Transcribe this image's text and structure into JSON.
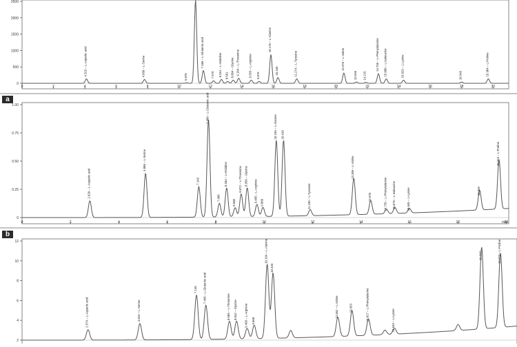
{
  "panel_tags": [
    "a",
    "b"
  ],
  "chart_data": [
    {
      "type": "line",
      "panel": "top",
      "ylim": [
        0,
        260
      ],
      "xlim": [
        0,
        31
      ],
      "yticks": [
        "2500",
        "2000",
        "1500",
        "1000",
        "500",
        "0"
      ],
      "xticks": [
        "0",
        "2",
        "4",
        "6",
        "8",
        "10",
        "12",
        "14",
        "16",
        "18",
        "20",
        "22",
        "24",
        "26",
        "28",
        "30"
      ],
      "grid": false,
      "peaks": [
        {
          "x": 4.1,
          "y": 14,
          "label": "4.315 – L-Aspartic acid"
        },
        {
          "x": 7.8,
          "y": 12,
          "label": "4.960 – L-Serine"
        },
        {
          "x": 10.5,
          "y": 2,
          "label": "5.878"
        },
        {
          "x": 11.05,
          "y": 260,
          "label": ""
        },
        {
          "x": 11.55,
          "y": 40,
          "label": "7.466 – L-Glutamic acid"
        },
        {
          "x": 12.2,
          "y": 8,
          "label": "7.970"
        },
        {
          "x": 12.7,
          "y": 12,
          "label": "8.261 – L-Histidine"
        },
        {
          "x": 13.1,
          "y": 6,
          "label": "8.561"
        },
        {
          "x": 13.45,
          "y": 10,
          "label": "8.864 – Glycine"
        },
        {
          "x": 13.8,
          "y": 16,
          "label": "9.184 – L-Threonine"
        },
        {
          "x": 14.6,
          "y": 10,
          "label": "9.553 – L-Arginine"
        },
        {
          "x": 15.1,
          "y": 6,
          "label": "9.876"
        },
        {
          "x": 15.85,
          "y": 90,
          "label": "10.176 – L-Alanine"
        },
        {
          "x": 16.3,
          "y": 18,
          "label": "10.449"
        },
        {
          "x": 17.5,
          "y": 14,
          "label": "11.274 – L-Tyrosine"
        },
        {
          "x": 20.5,
          "y": 32,
          "label": "13.376 – L-Valine"
        },
        {
          "x": 21.3,
          "y": 4,
          "label": "13.946"
        },
        {
          "x": 21.9,
          "y": 3,
          "label": "14.215"
        },
        {
          "x": 22.7,
          "y": 30,
          "label": "14.755 – L-Phenylalanine"
        },
        {
          "x": 23.2,
          "y": 14,
          "label": "15.080 – L-Isoleucine"
        },
        {
          "x": 24.3,
          "y": 10,
          "label": "15.629 – L-Lysine"
        },
        {
          "x": 28.0,
          "y": 4,
          "label": "18.549"
        },
        {
          "x": 29.7,
          "y": 14,
          "label": "19.304 – L-Proline"
        }
      ]
    },
    {
      "type": "line",
      "panel": "a",
      "ylim": [
        0,
        150
      ],
      "xlim": [
        0,
        20.1
      ],
      "yticks": [
        "1.00",
        "0.75",
        "0.50",
        "0.25",
        "0"
      ],
      "xticks": [
        "0",
        "2",
        "4",
        "6",
        "8",
        "10",
        "12",
        "14",
        "16",
        "18",
        "20"
      ],
      "x_unit_label": "min",
      "grid": false,
      "peaks": [
        {
          "x": 2.8,
          "y": 22,
          "label": "2.620 – L-Aspartic acid"
        },
        {
          "x": 5.1,
          "y": 58,
          "label": "4.886 – L-Serine"
        },
        {
          "x": 7.3,
          "y": 40,
          "label": "7.143"
        },
        {
          "x": 7.7,
          "y": 128,
          "label": "7.488 – L-Glutamic acid"
        },
        {
          "x": 8.15,
          "y": 18,
          "label": "7.986"
        },
        {
          "x": 8.45,
          "y": 38,
          "label": "8.284 – L-Histidine"
        },
        {
          "x": 8.8,
          "y": 12,
          "label": "8.580"
        },
        {
          "x": 9.05,
          "y": 30,
          "label": "8.872 – L-Threonine"
        },
        {
          "x": 9.3,
          "y": 38,
          "label": "8.956 – Glycine"
        },
        {
          "x": 9.7,
          "y": 16,
          "label": "9.485 – L-Arginine"
        },
        {
          "x": 9.95,
          "y": 12,
          "label": "9.868"
        },
        {
          "x": 10.5,
          "y": 100,
          "label": "10.196 – L-Alanine"
        },
        {
          "x": 10.8,
          "y": 100,
          "label": "10.410"
        },
        {
          "x": 11.9,
          "y": 8,
          "label": "11.230 – L-Tyrosine"
        },
        {
          "x": 13.7,
          "y": 48,
          "label": "13.355 – L-Valine"
        },
        {
          "x": 14.4,
          "y": 18,
          "label": "13.970"
        },
        {
          "x": 15.05,
          "y": 6,
          "label": "14.735 – L-Phenylalanine"
        },
        {
          "x": 15.4,
          "y": 8,
          "label": "15.075 – L-Isoleucine"
        },
        {
          "x": 16.0,
          "y": 6,
          "label": "15.545 – L-Lysine"
        },
        {
          "x": 18.9,
          "y": 26,
          "label": "18.559"
        },
        {
          "x": 19.7,
          "y": 65,
          "label": "19.323 – L-Proline"
        }
      ]
    },
    {
      "type": "line",
      "panel": "b",
      "ylim": [
        0,
        135
      ],
      "xlim": [
        0,
        21
      ],
      "yticks": [
        "12",
        "10",
        "8",
        "6",
        "4",
        "2"
      ],
      "grid": false,
      "peaks": [
        {
          "x": 2.8,
          "y": 14,
          "label": "2.574 – L-Aspartic acid"
        },
        {
          "x": 5.0,
          "y": 22,
          "label": "4.823 – L-Serine"
        },
        {
          "x": 7.4,
          "y": 60,
          "label": "7.146"
        },
        {
          "x": 7.8,
          "y": 46,
          "label": "7.496 – L-Glutamic acid"
        },
        {
          "x": 8.8,
          "y": 24,
          "label": "8.585 – L-Threonine"
        },
        {
          "x": 9.1,
          "y": 24,
          "label": "8.842 – Glycine"
        },
        {
          "x": 9.55,
          "y": 14,
          "label": "9.468 – L-Arginine"
        },
        {
          "x": 9.85,
          "y": 18,
          "label": "9.868"
        },
        {
          "x": 10.4,
          "y": 100,
          "label": "10.164 – L-Alanine"
        },
        {
          "x": 10.65,
          "y": 88,
          "label": "10.433"
        },
        {
          "x": 11.4,
          "y": 10,
          "label": ""
        },
        {
          "x": 13.4,
          "y": 26,
          "label": "13.362 – L-Valine"
        },
        {
          "x": 14.0,
          "y": 34,
          "label": "13.953"
        },
        {
          "x": 14.7,
          "y": 22,
          "label": "14.817 – L-Phenylalanine"
        },
        {
          "x": 15.4,
          "y": 6,
          "label": ""
        },
        {
          "x": 15.8,
          "y": 8,
          "label": "15.543 – L-Lysine"
        },
        {
          "x": 18.5,
          "y": 8,
          "label": ""
        },
        {
          "x": 19.5,
          "y": 110,
          "label": "19.393"
        },
        {
          "x": 20.3,
          "y": 100,
          "label": "19.973 – L-Proline"
        }
      ]
    }
  ]
}
